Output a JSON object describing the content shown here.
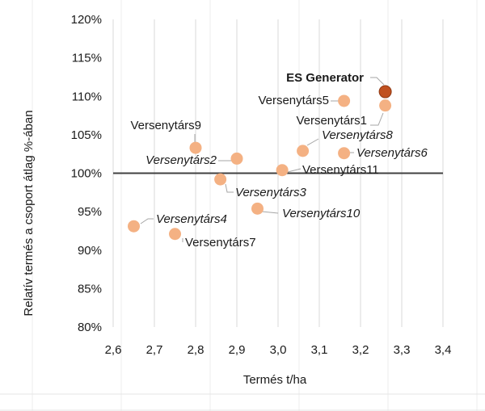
{
  "chart_data": {
    "type": "scatter",
    "title": "",
    "xlabel": "Termés t/ha",
    "ylabel": "Relatív termés a csoport átlag %-ában",
    "xlim": [
      2.6,
      3.4
    ],
    "ylim": [
      80,
      120
    ],
    "x_ticks": [
      2.6,
      2.7,
      2.8,
      2.9,
      3.0,
      3.1,
      3.2,
      3.3,
      3.4
    ],
    "y_ticks": [
      80,
      85,
      90,
      95,
      100,
      105,
      110,
      115,
      120
    ],
    "x_tick_labels": [
      "2,6",
      "2,7",
      "2,8",
      "2,9",
      "3,0",
      "3,1",
      "3,2",
      "3,3",
      "3,4"
    ],
    "y_tick_labels": [
      "80%",
      "85%",
      "90%",
      "95%",
      "100%",
      "105%",
      "110%",
      "115%",
      "120%"
    ],
    "reference_line": {
      "y": 100
    },
    "grid": "vertical",
    "colors": {
      "highlight": "#c0501f",
      "point": "#f4b183",
      "reference": "#404040",
      "leader": "#a6a6a6"
    },
    "points": [
      {
        "name": "ES Generator",
        "x": 3.26,
        "y": 110.6,
        "highlight": true,
        "label_style": "bold",
        "label_side": "left"
      },
      {
        "name": "Versenytárs5",
        "x": 3.16,
        "y": 109.4,
        "highlight": false,
        "label_style": "normal",
        "label_side": "left"
      },
      {
        "name": "Versenytárs1",
        "x": 3.26,
        "y": 108.8,
        "highlight": false,
        "label_style": "normal",
        "label_side": "left"
      },
      {
        "name": "Versenytárs8",
        "x": 3.06,
        "y": 102.9,
        "highlight": false,
        "label_style": "italic",
        "label_side": "right"
      },
      {
        "name": "Versenytárs6",
        "x": 3.16,
        "y": 102.6,
        "highlight": false,
        "label_style": "italic",
        "label_side": "right"
      },
      {
        "name": "Versenytárs9",
        "x": 2.8,
        "y": 103.3,
        "highlight": false,
        "label_style": "normal",
        "label_side": "left"
      },
      {
        "name": "Versenytárs2",
        "x": 2.9,
        "y": 101.9,
        "highlight": false,
        "label_style": "italic",
        "label_side": "left"
      },
      {
        "name": "Versenytárs11",
        "x": 3.01,
        "y": 100.4,
        "highlight": false,
        "label_style": "normal",
        "label_side": "right"
      },
      {
        "name": "Versenytárs3",
        "x": 2.86,
        "y": 99.2,
        "highlight": false,
        "label_style": "italic",
        "label_side": "right"
      },
      {
        "name": "Versenytárs10",
        "x": 2.95,
        "y": 95.4,
        "highlight": false,
        "label_style": "italic",
        "label_side": "right"
      },
      {
        "name": "Versenytárs4",
        "x": 2.65,
        "y": 93.1,
        "highlight": false,
        "label_style": "italic",
        "label_side": "right"
      },
      {
        "name": "Versenytárs7",
        "x": 2.75,
        "y": 92.1,
        "highlight": false,
        "label_style": "normal",
        "label_side": "right"
      }
    ]
  }
}
